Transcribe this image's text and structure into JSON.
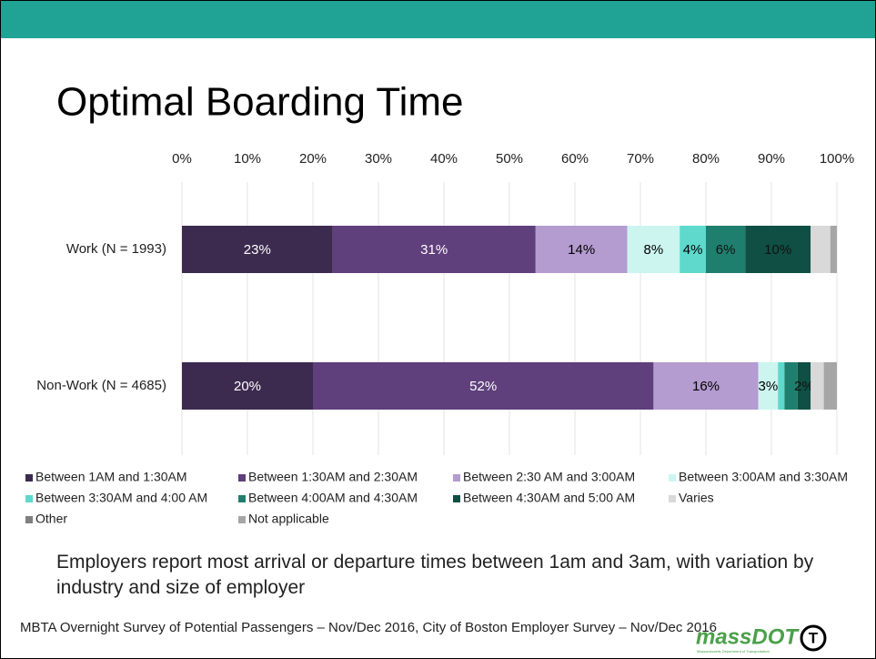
{
  "slide": {
    "title": "Optimal Boarding Time",
    "caption": "Employers report most arrival or departure times between 1am and 3am, with variation by industry and size of employer",
    "source": "MBTA Overnight Survey of Potential Passengers – Nov/Dec 2016, City of Boston Employer Survey – Nov/Dec 2016",
    "logo": "massDOT",
    "logo_sub": "Massachusetts Department of Transportation",
    "logo_t": "T"
  },
  "chart_data": {
    "type": "stacked_barh",
    "categories": [
      "Work (N = 1993)",
      "Non-Work (N = 4685)"
    ],
    "xlim": [
      0,
      100
    ],
    "xticks": [
      {
        "value": 0,
        "label": "0%"
      },
      {
        "value": 10,
        "label": "10%"
      },
      {
        "value": 20,
        "label": "20%"
      },
      {
        "value": 30,
        "label": "30%"
      },
      {
        "value": 40,
        "label": "40%"
      },
      {
        "value": 50,
        "label": "50%"
      },
      {
        "value": 60,
        "label": "60%"
      },
      {
        "value": 70,
        "label": "70%"
      },
      {
        "value": 80,
        "label": "80%"
      },
      {
        "value": 90,
        "label": "90%"
      },
      {
        "value": 100,
        "label": "100%"
      }
    ],
    "grid": true,
    "legend": "bottom",
    "series": [
      {
        "name": "Between 1AM and 1:30AM",
        "color": "#3d2a4f",
        "values": [
          23,
          20
        ],
        "value_labels": [
          "23%",
          "20%"
        ]
      },
      {
        "name": "Between 1:30AM and 2:30AM",
        "color": "#5f3f7c",
        "values": [
          31,
          52
        ],
        "value_labels": [
          "31%",
          "52%"
        ]
      },
      {
        "name": "Between 2:30 AM and 3:00AM",
        "color": "#b49bd0",
        "values": [
          14,
          16
        ],
        "value_labels": [
          "14%",
          "16%"
        ]
      },
      {
        "name": "Between 3:00AM and 3:30AM",
        "color": "#ccf5f0",
        "values": [
          8,
          3
        ],
        "value_labels": [
          "8%",
          "3%"
        ]
      },
      {
        "name": "Between 3:30AM and 4:00 AM",
        "color": "#5ed9cc",
        "values": [
          4,
          1
        ],
        "value_labels": [
          "4%",
          null
        ]
      },
      {
        "name": "Between 4:00AM and 4:30AM",
        "color": "#1f7f6e",
        "values": [
          6,
          2
        ],
        "value_labels": [
          "6%",
          null
        ]
      },
      {
        "name": "Between 4:30AM and 5:00 AM",
        "color": "#0f4f44",
        "values": [
          10,
          2
        ],
        "value_labels": [
          "10%",
          "2%"
        ]
      },
      {
        "name": "Varies",
        "color": "#d9d9d9",
        "values": [
          3,
          2
        ],
        "value_labels": [
          null,
          null
        ]
      },
      {
        "name": "Other",
        "color": "#7f7f7f",
        "values": [
          0,
          0
        ],
        "value_labels": [
          null,
          null
        ]
      },
      {
        "name": "Not applicable",
        "color": "#a6a6a6",
        "values": [
          1,
          2
        ],
        "value_labels": [
          null,
          null
        ]
      }
    ]
  }
}
